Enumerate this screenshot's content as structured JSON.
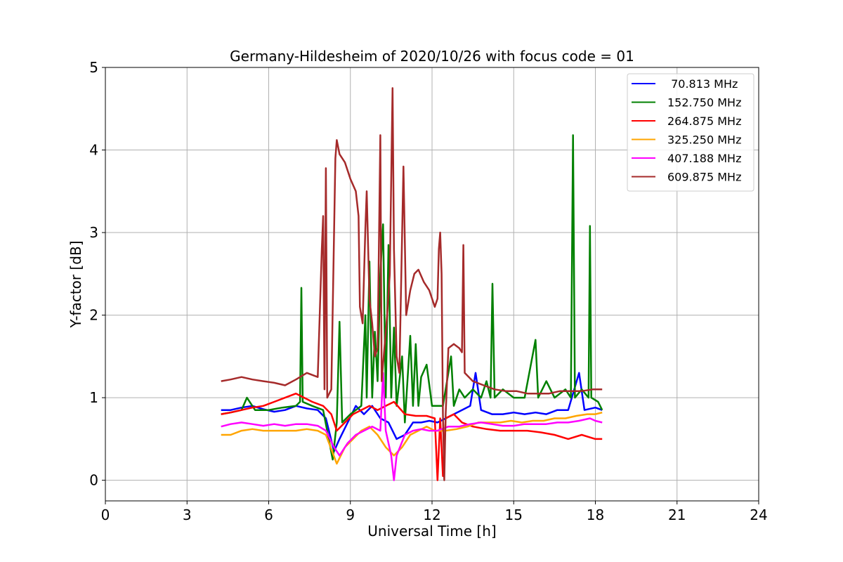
{
  "chart_data": {
    "type": "line",
    "title": "Germany-Hildesheim of 2020/10/26 with focus code = 01",
    "xlabel": "Universal Time [h]",
    "ylabel": "Y-factor [dB]",
    "xlim": [
      0,
      24
    ],
    "ylim": [
      -0.25,
      5
    ],
    "xticks": [
      0,
      3,
      6,
      9,
      12,
      15,
      18,
      21,
      24
    ],
    "yticks": [
      0,
      1,
      2,
      3,
      4,
      5
    ],
    "xtick_labels": [
      "0",
      "3",
      "6",
      "9",
      "12",
      "15",
      "18",
      "21",
      "24"
    ],
    "ytick_labels": [
      "0",
      "1",
      "2",
      "3",
      "4",
      "5"
    ],
    "grid": true,
    "legend_position": "top-right",
    "series": [
      {
        "name": " 70.813 MHz",
        "color": "#0000ff",
        "points": [
          [
            4.25,
            0.85
          ],
          [
            4.6,
            0.85
          ],
          [
            5.0,
            0.88
          ],
          [
            5.4,
            0.9
          ],
          [
            5.8,
            0.86
          ],
          [
            6.2,
            0.83
          ],
          [
            6.6,
            0.85
          ],
          [
            7.0,
            0.9
          ],
          [
            7.4,
            0.87
          ],
          [
            7.8,
            0.85
          ],
          [
            8.1,
            0.75
          ],
          [
            8.4,
            0.35
          ],
          [
            8.6,
            0.5
          ],
          [
            8.9,
            0.7
          ],
          [
            9.2,
            0.9
          ],
          [
            9.5,
            0.8
          ],
          [
            9.8,
            0.9
          ],
          [
            10.1,
            0.75
          ],
          [
            10.4,
            0.7
          ],
          [
            10.7,
            0.5
          ],
          [
            11.0,
            0.55
          ],
          [
            11.3,
            0.7
          ],
          [
            11.6,
            0.7
          ],
          [
            11.9,
            0.72
          ],
          [
            12.2,
            0.7
          ],
          [
            12.5,
            0.75
          ],
          [
            12.8,
            0.8
          ],
          [
            13.1,
            0.85
          ],
          [
            13.4,
            0.9
          ],
          [
            13.6,
            1.3
          ],
          [
            13.8,
            0.85
          ],
          [
            14.2,
            0.8
          ],
          [
            14.6,
            0.8
          ],
          [
            15.0,
            0.82
          ],
          [
            15.4,
            0.8
          ],
          [
            15.8,
            0.82
          ],
          [
            16.2,
            0.8
          ],
          [
            16.6,
            0.85
          ],
          [
            17.0,
            0.85
          ],
          [
            17.4,
            1.3
          ],
          [
            17.6,
            0.85
          ],
          [
            18.0,
            0.88
          ],
          [
            18.25,
            0.85
          ]
        ]
      },
      {
        "name": "152.750 MHz",
        "color": "#008000",
        "points": [
          [
            4.25,
            0.8
          ],
          [
            4.6,
            0.82
          ],
          [
            5.0,
            0.85
          ],
          [
            5.2,
            1.0
          ],
          [
            5.5,
            0.85
          ],
          [
            6.0,
            0.85
          ],
          [
            6.5,
            0.88
          ],
          [
            7.0,
            0.9
          ],
          [
            7.15,
            0.95
          ],
          [
            7.2,
            2.33
          ],
          [
            7.25,
            0.95
          ],
          [
            7.6,
            0.9
          ],
          [
            8.0,
            0.85
          ],
          [
            8.35,
            0.25
          ],
          [
            8.5,
            0.7
          ],
          [
            8.6,
            1.92
          ],
          [
            8.7,
            0.7
          ],
          [
            9.0,
            0.8
          ],
          [
            9.4,
            0.9
          ],
          [
            9.55,
            2.0
          ],
          [
            9.6,
            1.0
          ],
          [
            9.7,
            2.65
          ],
          [
            9.8,
            1.0
          ],
          [
            9.9,
            1.8
          ],
          [
            10.0,
            1.2
          ],
          [
            10.1,
            2.5
          ],
          [
            10.2,
            3.1
          ],
          [
            10.3,
            1.0
          ],
          [
            10.4,
            2.85
          ],
          [
            10.5,
            1.0
          ],
          [
            10.6,
            1.85
          ],
          [
            10.7,
            0.9
          ],
          [
            10.9,
            1.5
          ],
          [
            11.0,
            0.7
          ],
          [
            11.2,
            1.75
          ],
          [
            11.3,
            0.9
          ],
          [
            11.4,
            1.65
          ],
          [
            11.5,
            0.9
          ],
          [
            11.6,
            1.25
          ],
          [
            11.8,
            1.4
          ],
          [
            12.0,
            0.9
          ],
          [
            12.4,
            0.9
          ],
          [
            12.7,
            1.5
          ],
          [
            12.8,
            0.9
          ],
          [
            13.0,
            1.1
          ],
          [
            13.2,
            1.0
          ],
          [
            13.5,
            1.1
          ],
          [
            13.8,
            1.0
          ],
          [
            14.0,
            1.2
          ],
          [
            14.15,
            1.0
          ],
          [
            14.22,
            2.38
          ],
          [
            14.3,
            1.0
          ],
          [
            14.6,
            1.1
          ],
          [
            15.0,
            1.0
          ],
          [
            15.4,
            1.0
          ],
          [
            15.8,
            1.7
          ],
          [
            15.9,
            1.0
          ],
          [
            16.2,
            1.2
          ],
          [
            16.5,
            1.0
          ],
          [
            16.9,
            1.1
          ],
          [
            17.1,
            1.0
          ],
          [
            17.18,
            4.18
          ],
          [
            17.25,
            1.0
          ],
          [
            17.5,
            1.1
          ],
          [
            17.75,
            1.0
          ],
          [
            17.8,
            3.08
          ],
          [
            17.85,
            1.0
          ],
          [
            18.1,
            0.95
          ],
          [
            18.25,
            0.85
          ]
        ]
      },
      {
        "name": "264.875 MHz",
        "color": "#ff0000",
        "points": [
          [
            4.25,
            0.8
          ],
          [
            4.6,
            0.82
          ],
          [
            5.0,
            0.85
          ],
          [
            5.4,
            0.88
          ],
          [
            5.8,
            0.9
          ],
          [
            6.2,
            0.95
          ],
          [
            6.6,
            1.0
          ],
          [
            7.0,
            1.05
          ],
          [
            7.3,
            1.0
          ],
          [
            7.6,
            0.95
          ],
          [
            8.0,
            0.9
          ],
          [
            8.3,
            0.8
          ],
          [
            8.5,
            0.6
          ],
          [
            8.8,
            0.7
          ],
          [
            9.1,
            0.8
          ],
          [
            9.4,
            0.85
          ],
          [
            9.7,
            0.9
          ],
          [
            10.0,
            0.85
          ],
          [
            10.3,
            0.9
          ],
          [
            10.6,
            0.95
          ],
          [
            11.0,
            0.8
          ],
          [
            11.4,
            0.78
          ],
          [
            11.8,
            0.78
          ],
          [
            12.1,
            0.75
          ],
          [
            12.2,
            0.0
          ],
          [
            12.3,
            0.75
          ],
          [
            12.4,
            0.05
          ],
          [
            12.5,
            0.75
          ],
          [
            12.8,
            0.8
          ],
          [
            13.1,
            0.7
          ],
          [
            13.5,
            0.65
          ],
          [
            14.0,
            0.62
          ],
          [
            14.5,
            0.6
          ],
          [
            15.0,
            0.6
          ],
          [
            15.5,
            0.6
          ],
          [
            16.0,
            0.58
          ],
          [
            16.5,
            0.55
          ],
          [
            17.0,
            0.5
          ],
          [
            17.5,
            0.55
          ],
          [
            18.0,
            0.5
          ],
          [
            18.25,
            0.5
          ]
        ]
      },
      {
        "name": "325.250 MHz",
        "color": "#ffa500",
        "points": [
          [
            4.25,
            0.55
          ],
          [
            4.6,
            0.55
          ],
          [
            5.0,
            0.6
          ],
          [
            5.4,
            0.62
          ],
          [
            5.8,
            0.6
          ],
          [
            6.2,
            0.6
          ],
          [
            6.6,
            0.6
          ],
          [
            7.0,
            0.6
          ],
          [
            7.4,
            0.62
          ],
          [
            7.8,
            0.6
          ],
          [
            8.1,
            0.55
          ],
          [
            8.5,
            0.2
          ],
          [
            8.8,
            0.4
          ],
          [
            9.1,
            0.5
          ],
          [
            9.4,
            0.6
          ],
          [
            9.7,
            0.65
          ],
          [
            10.0,
            0.55
          ],
          [
            10.3,
            0.4
          ],
          [
            10.6,
            0.3
          ],
          [
            10.9,
            0.4
          ],
          [
            11.2,
            0.55
          ],
          [
            11.5,
            0.6
          ],
          [
            11.8,
            0.65
          ],
          [
            12.1,
            0.6
          ],
          [
            12.5,
            0.6
          ],
          [
            12.9,
            0.62
          ],
          [
            13.3,
            0.65
          ],
          [
            13.7,
            0.7
          ],
          [
            14.1,
            0.7
          ],
          [
            14.5,
            0.7
          ],
          [
            14.9,
            0.72
          ],
          [
            15.3,
            0.7
          ],
          [
            15.7,
            0.72
          ],
          [
            16.1,
            0.72
          ],
          [
            16.5,
            0.75
          ],
          [
            16.9,
            0.75
          ],
          [
            17.3,
            0.78
          ],
          [
            17.7,
            0.8
          ],
          [
            18.0,
            0.8
          ],
          [
            18.25,
            0.82
          ]
        ]
      },
      {
        "name": "407.188 MHz",
        "color": "#ff00ff",
        "points": [
          [
            4.25,
            0.65
          ],
          [
            4.6,
            0.68
          ],
          [
            5.0,
            0.7
          ],
          [
            5.4,
            0.68
          ],
          [
            5.8,
            0.66
          ],
          [
            6.2,
            0.68
          ],
          [
            6.6,
            0.66
          ],
          [
            7.0,
            0.68
          ],
          [
            7.4,
            0.68
          ],
          [
            7.8,
            0.66
          ],
          [
            8.1,
            0.6
          ],
          [
            8.4,
            0.4
          ],
          [
            8.6,
            0.3
          ],
          [
            8.9,
            0.45
          ],
          [
            9.2,
            0.55
          ],
          [
            9.5,
            0.6
          ],
          [
            9.8,
            0.65
          ],
          [
            10.1,
            0.6
          ],
          [
            10.2,
            1.3
          ],
          [
            10.3,
            0.6
          ],
          [
            10.5,
            0.3
          ],
          [
            10.6,
            0.0
          ],
          [
            10.7,
            0.3
          ],
          [
            11.0,
            0.55
          ],
          [
            11.3,
            0.6
          ],
          [
            11.6,
            0.62
          ],
          [
            11.9,
            0.6
          ],
          [
            12.2,
            0.6
          ],
          [
            12.6,
            0.65
          ],
          [
            13.0,
            0.65
          ],
          [
            13.4,
            0.68
          ],
          [
            13.8,
            0.7
          ],
          [
            14.2,
            0.68
          ],
          [
            14.6,
            0.66
          ],
          [
            15.0,
            0.66
          ],
          [
            15.4,
            0.68
          ],
          [
            15.8,
            0.68
          ],
          [
            16.2,
            0.68
          ],
          [
            16.6,
            0.7
          ],
          [
            17.0,
            0.7
          ],
          [
            17.4,
            0.72
          ],
          [
            17.8,
            0.75
          ],
          [
            18.0,
            0.72
          ],
          [
            18.25,
            0.7
          ]
        ]
      },
      {
        "name": "609.875 MHz",
        "color": "#a52a2a",
        "points": [
          [
            4.25,
            1.2
          ],
          [
            4.6,
            1.22
          ],
          [
            5.0,
            1.25
          ],
          [
            5.4,
            1.22
          ],
          [
            5.8,
            1.2
          ],
          [
            6.2,
            1.18
          ],
          [
            6.6,
            1.15
          ],
          [
            7.0,
            1.22
          ],
          [
            7.4,
            1.3
          ],
          [
            7.8,
            1.25
          ],
          [
            7.95,
            2.8
          ],
          [
            8.0,
            3.2
          ],
          [
            8.05,
            1.1
          ],
          [
            8.1,
            3.78
          ],
          [
            8.15,
            1.0
          ],
          [
            8.3,
            1.1
          ],
          [
            8.45,
            3.9
          ],
          [
            8.5,
            4.12
          ],
          [
            8.6,
            3.95
          ],
          [
            8.8,
            3.85
          ],
          [
            9.0,
            3.65
          ],
          [
            9.2,
            3.5
          ],
          [
            9.3,
            3.2
          ],
          [
            9.35,
            2.1
          ],
          [
            9.45,
            1.9
          ],
          [
            9.55,
            3.05
          ],
          [
            9.6,
            3.5
          ],
          [
            9.7,
            2.2
          ],
          [
            9.8,
            1.9
          ],
          [
            9.9,
            1.5
          ],
          [
            10.0,
            1.6
          ],
          [
            10.1,
            4.18
          ],
          [
            10.15,
            1.2
          ],
          [
            10.25,
            1.6
          ],
          [
            10.35,
            2.0
          ],
          [
            10.45,
            2.5
          ],
          [
            10.55,
            4.75
          ],
          [
            10.6,
            2.8
          ],
          [
            10.7,
            1.5
          ],
          [
            10.8,
            1.3
          ],
          [
            10.95,
            3.8
          ],
          [
            11.05,
            2.0
          ],
          [
            11.2,
            2.3
          ],
          [
            11.35,
            2.5
          ],
          [
            11.5,
            2.55
          ],
          [
            11.7,
            2.4
          ],
          [
            11.9,
            2.3
          ],
          [
            12.1,
            2.1
          ],
          [
            12.2,
            2.2
          ],
          [
            12.25,
            2.8
          ],
          [
            12.3,
            3.0
          ],
          [
            12.35,
            2.5
          ],
          [
            12.4,
            0.8
          ],
          [
            12.45,
            0.0
          ],
          [
            12.5,
            0.8
          ],
          [
            12.6,
            1.6
          ],
          [
            12.8,
            1.65
          ],
          [
            13.0,
            1.6
          ],
          [
            13.1,
            1.55
          ],
          [
            13.15,
            2.85
          ],
          [
            13.2,
            1.3
          ],
          [
            13.5,
            1.2
          ],
          [
            13.9,
            1.15
          ],
          [
            14.3,
            1.1
          ],
          [
            14.7,
            1.08
          ],
          [
            15.1,
            1.08
          ],
          [
            15.5,
            1.05
          ],
          [
            15.9,
            1.05
          ],
          [
            16.3,
            1.05
          ],
          [
            16.7,
            1.08
          ],
          [
            17.1,
            1.08
          ],
          [
            17.5,
            1.08
          ],
          [
            17.9,
            1.1
          ],
          [
            18.25,
            1.1
          ]
        ]
      }
    ]
  }
}
